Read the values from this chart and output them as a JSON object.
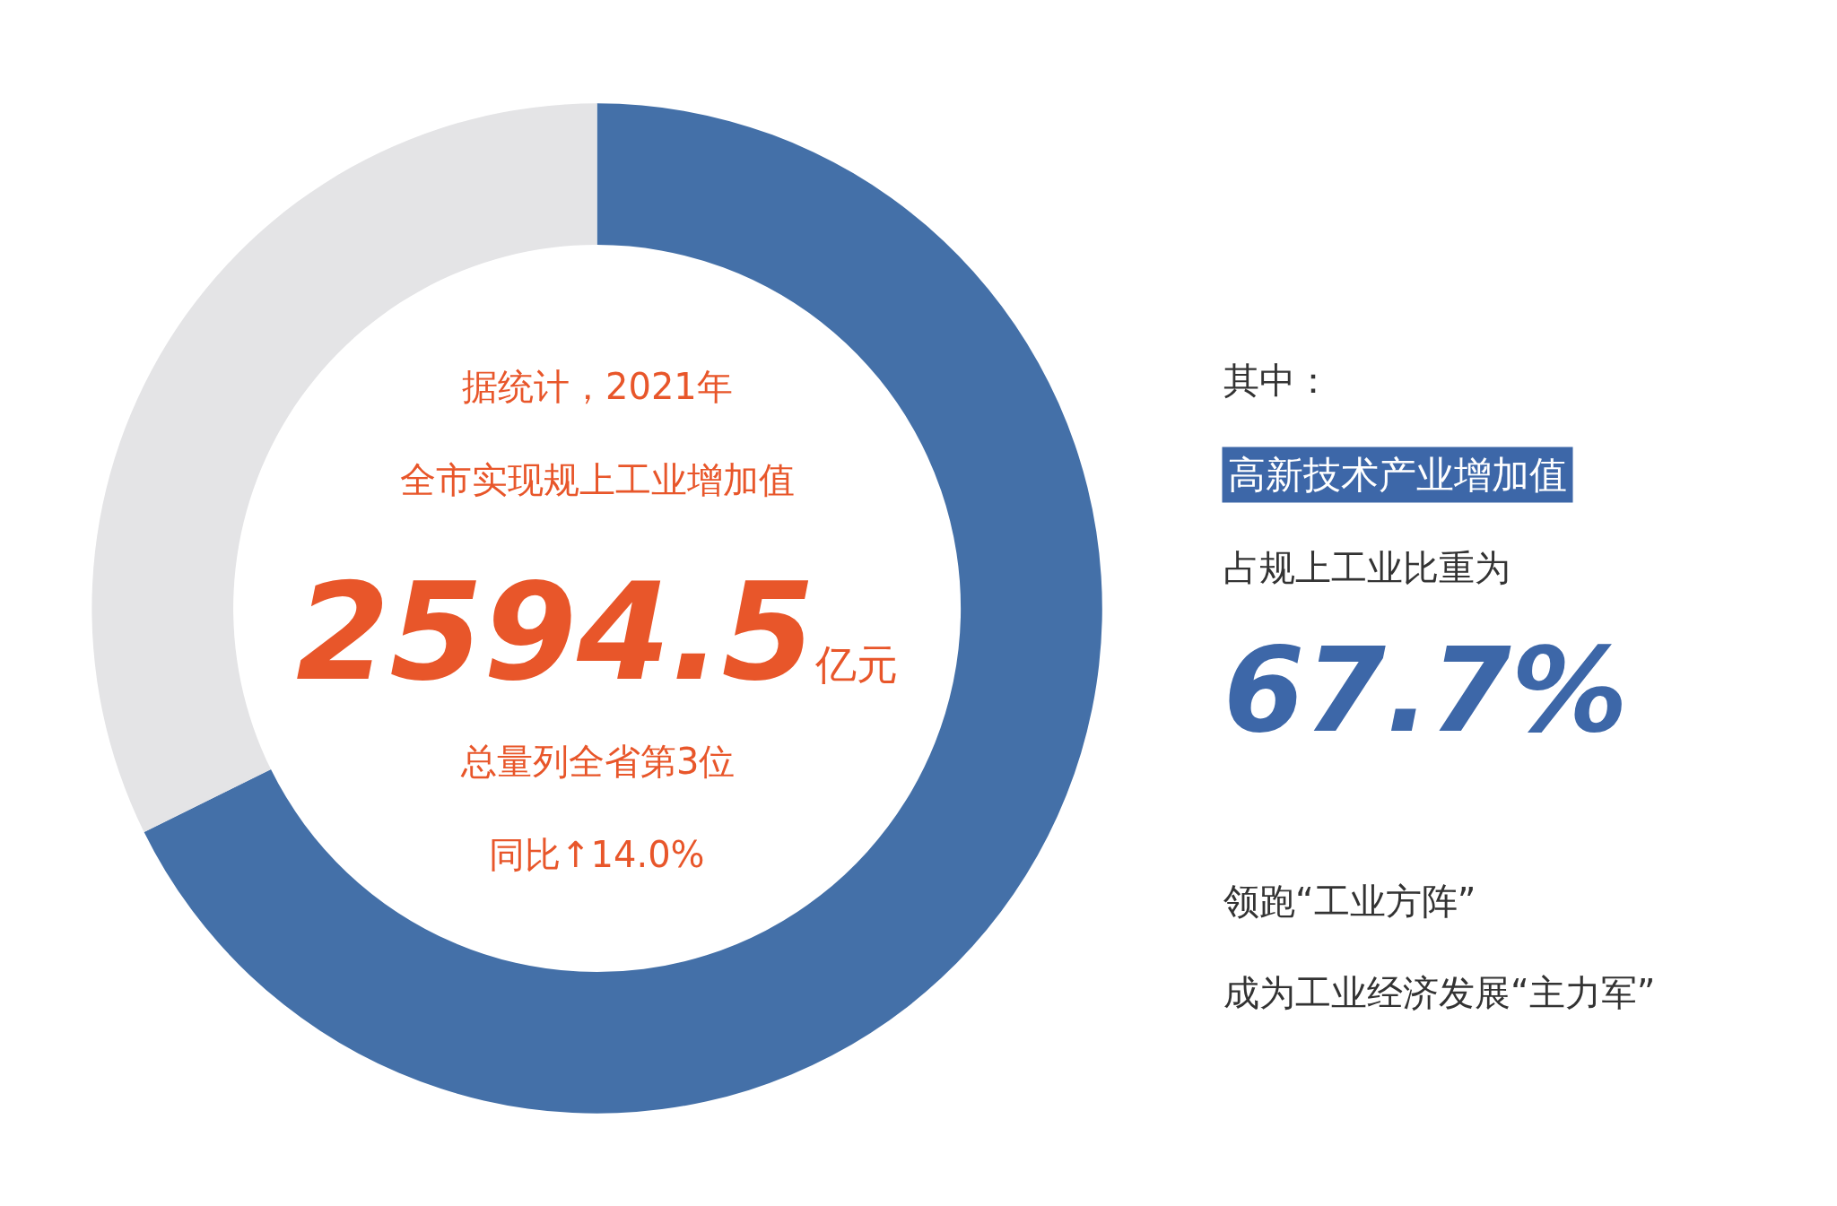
{
  "chart_data": {
    "type": "donut",
    "categories": [
      null,
      null
    ],
    "values": [
      67.7,
      32.3
    ],
    "colors": [
      "#4470a8",
      "#e4e4e6"
    ],
    "annotations": [
      "据统计，2021年",
      "全市实现规上工业增加值",
      "2594.5亿元",
      "总量列全省第3位",
      "同比↑14.0%",
      "其中：",
      "高新技术产业增加值",
      "占规上工业比重为",
      "67.7%",
      "领跑“工业方阵”",
      "成为工业经济发展“主力军”"
    ]
  }
}
